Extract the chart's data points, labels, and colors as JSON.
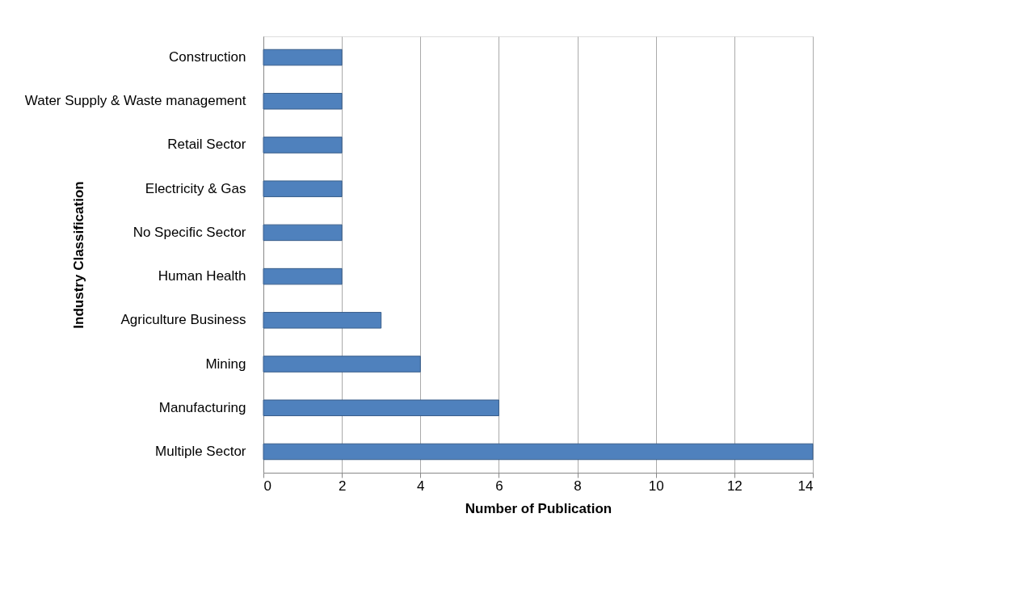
{
  "chart_data": {
    "type": "bar",
    "orientation": "horizontal",
    "categories": [
      "Construction",
      "Water Supply & Waste management",
      "Retail Sector",
      "Electricity & Gas",
      "No Specific Sector",
      "Human Health",
      "Agriculture Business",
      "Mining",
      "Manufacturing",
      "Multiple Sector"
    ],
    "values": [
      2,
      2,
      2,
      2,
      2,
      2,
      3,
      4,
      6,
      14
    ],
    "color": "#4f81bd",
    "xlim": [
      0,
      14
    ],
    "xticks": [
      0,
      2,
      4,
      6,
      8,
      10,
      12,
      14
    ],
    "xlabel": "Number of Publication",
    "ylabel": "Industry Classification",
    "grid": "x"
  }
}
